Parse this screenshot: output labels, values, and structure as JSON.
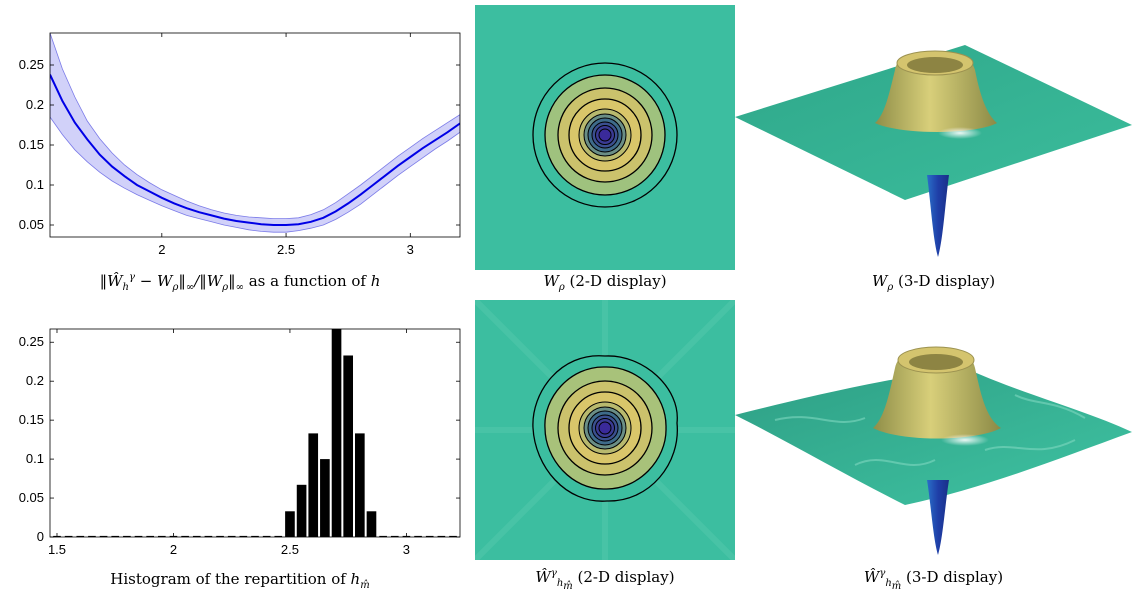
{
  "colors": {
    "line": "#0000e6",
    "band": "#b3b3f5",
    "bar": "#000000",
    "map_bg": "#3cbea0",
    "ring_yellow": "#d9c66a",
    "center": "#3a2a9a"
  },
  "captions": {
    "top_left_tail": " as a function of ",
    "top_left_var": "h",
    "top_mid_tail": " (2-D display)",
    "top_right_tail": " (3-D display)",
    "bottom_left_text": "Histogram of the repartition of ",
    "bottom_mid_tail": " (2-D display)",
    "bottom_right_tail": " (3-D display)"
  },
  "chart_data": [
    {
      "type": "line",
      "xlim": [
        1.55,
        3.2
      ],
      "ylim": [
        0.035,
        0.29
      ],
      "xticks": [
        2,
        2.5,
        3
      ],
      "xtick_labels": [
        "2",
        "2.5",
        "3"
      ],
      "yticks": [
        0.05,
        0.1,
        0.15,
        0.2,
        0.25
      ],
      "ytick_labels": [
        "0.05",
        "0.1",
        "0.15",
        "0.2",
        "0.25"
      ],
      "x": [
        1.55,
        1.6,
        1.65,
        1.7,
        1.75,
        1.8,
        1.85,
        1.9,
        1.95,
        2.0,
        2.05,
        2.1,
        2.15,
        2.2,
        2.25,
        2.3,
        2.35,
        2.4,
        2.45,
        2.5,
        2.55,
        2.6,
        2.65,
        2.7,
        2.75,
        2.8,
        2.85,
        2.9,
        2.95,
        3.0,
        3.05,
        3.1,
        3.15,
        3.2
      ],
      "y": [
        0.238,
        0.205,
        0.178,
        0.157,
        0.138,
        0.123,
        0.111,
        0.1,
        0.092,
        0.084,
        0.077,
        0.071,
        0.066,
        0.062,
        0.058,
        0.055,
        0.053,
        0.051,
        0.05,
        0.05,
        0.051,
        0.054,
        0.059,
        0.067,
        0.077,
        0.088,
        0.1,
        0.112,
        0.124,
        0.135,
        0.146,
        0.156,
        0.166,
        0.177
      ],
      "y_upper": [
        0.29,
        0.245,
        0.21,
        0.18,
        0.158,
        0.14,
        0.125,
        0.113,
        0.103,
        0.094,
        0.087,
        0.08,
        0.074,
        0.069,
        0.065,
        0.062,
        0.06,
        0.059,
        0.058,
        0.058,
        0.059,
        0.063,
        0.069,
        0.078,
        0.089,
        0.1,
        0.112,
        0.124,
        0.136,
        0.147,
        0.158,
        0.168,
        0.178,
        0.188
      ],
      "y_lower": [
        0.185,
        0.163,
        0.144,
        0.129,
        0.116,
        0.105,
        0.096,
        0.088,
        0.081,
        0.074,
        0.068,
        0.062,
        0.058,
        0.054,
        0.05,
        0.047,
        0.044,
        0.042,
        0.041,
        0.041,
        0.043,
        0.046,
        0.05,
        0.057,
        0.066,
        0.076,
        0.088,
        0.1,
        0.112,
        0.123,
        0.134,
        0.145,
        0.155,
        0.166
      ]
    },
    {
      "type": "bar",
      "xlim": [
        1.47,
        3.23
      ],
      "ylim": [
        0,
        0.267
      ],
      "xticks": [
        1.5,
        2,
        2.5,
        3
      ],
      "xtick_labels": [
        "1.5",
        "2",
        "2.5",
        "3"
      ],
      "yticks": [
        0,
        0.05,
        0.1,
        0.15,
        0.2,
        0.25
      ],
      "ytick_labels": [
        "0",
        "0.05",
        "0.1",
        "0.15",
        "0.2",
        "0.25"
      ],
      "bin_width": 0.05,
      "x": [
        1.5,
        1.55,
        1.6,
        1.65,
        1.7,
        1.75,
        1.8,
        1.85,
        1.9,
        1.95,
        2.0,
        2.05,
        2.1,
        2.15,
        2.2,
        2.25,
        2.3,
        2.35,
        2.4,
        2.45,
        2.5,
        2.55,
        2.6,
        2.65,
        2.7,
        2.75,
        2.8,
        2.85,
        2.9,
        2.95,
        3.0,
        3.05,
        3.1,
        3.15,
        3.2
      ],
      "values": [
        0,
        0,
        0,
        0,
        0,
        0,
        0,
        0,
        0,
        0,
        0,
        0,
        0,
        0,
        0,
        0,
        0,
        0,
        0,
        0,
        0.033,
        0.067,
        0.133,
        0.1,
        0.267,
        0.233,
        0.133,
        0.033,
        0,
        0,
        0,
        0,
        0,
        0,
        0
      ]
    }
  ]
}
